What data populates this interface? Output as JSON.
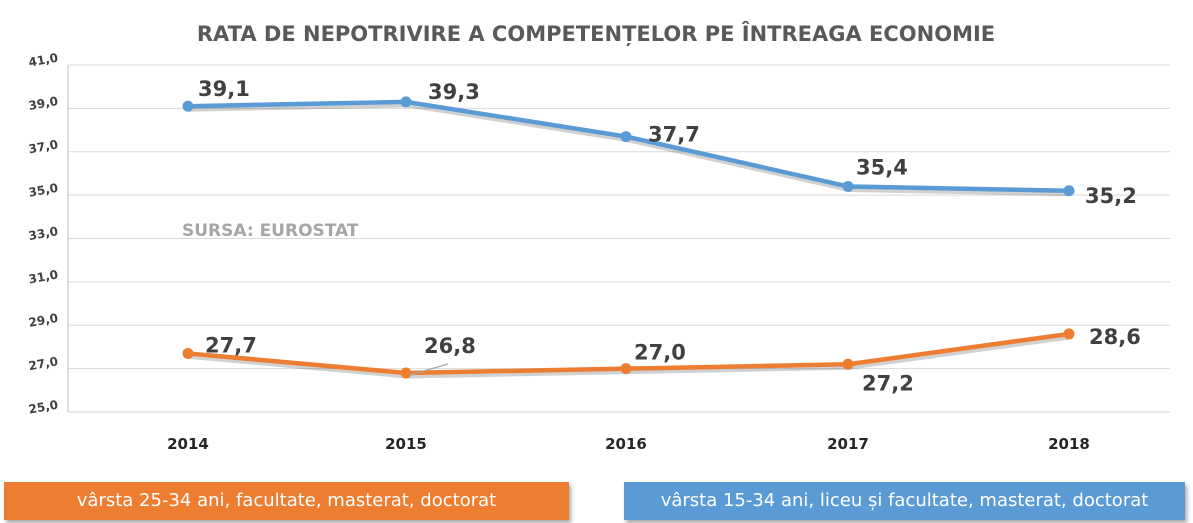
{
  "chart_data": {
    "type": "line",
    "title": "RATA DE NEPOTRIVIRE A COMPETENȚELOR PE ÎNTREAGA ECONOMIE",
    "categories": [
      "2014",
      "2015",
      "2016",
      "2017",
      "2018"
    ],
    "ylim": [
      25,
      41
    ],
    "yticks": [
      "25,0",
      "27,0",
      "29,0",
      "31,0",
      "33,0",
      "35,0",
      "37,0",
      "39,0",
      "41,0"
    ],
    "ytick_values": [
      25,
      27,
      29,
      31,
      33,
      35,
      37,
      39,
      41
    ],
    "grid": true,
    "series": [
      {
        "name": "vârsta 15-34 ani, liceu și facultate, masterat, doctorat",
        "color": "#5b9bd5",
        "values": [
          39.1,
          39.3,
          37.7,
          35.4,
          35.2
        ],
        "labels": [
          "39,1",
          "39,3",
          "37,7",
          "35,4",
          "35,2"
        ]
      },
      {
        "name": "vârsta 25-34 ani, facultate, masterat, doctorat",
        "color": "#ed7d31",
        "values": [
          27.7,
          26.8,
          27.0,
          27.2,
          28.6
        ],
        "labels": [
          "27,7",
          "26,8",
          "27,0",
          "27,2",
          "28,6"
        ]
      }
    ],
    "annotation": "SURSA: EUROSTAT"
  },
  "legend": {
    "orange_label": "vârsta 25-34 ani, facultate, masterat, doctorat",
    "blue_label": "vârsta 15-34 ani, liceu și facultate, masterat, doctorat",
    "orange_color": "#ed7d31",
    "blue_color": "#5b9bd5"
  }
}
